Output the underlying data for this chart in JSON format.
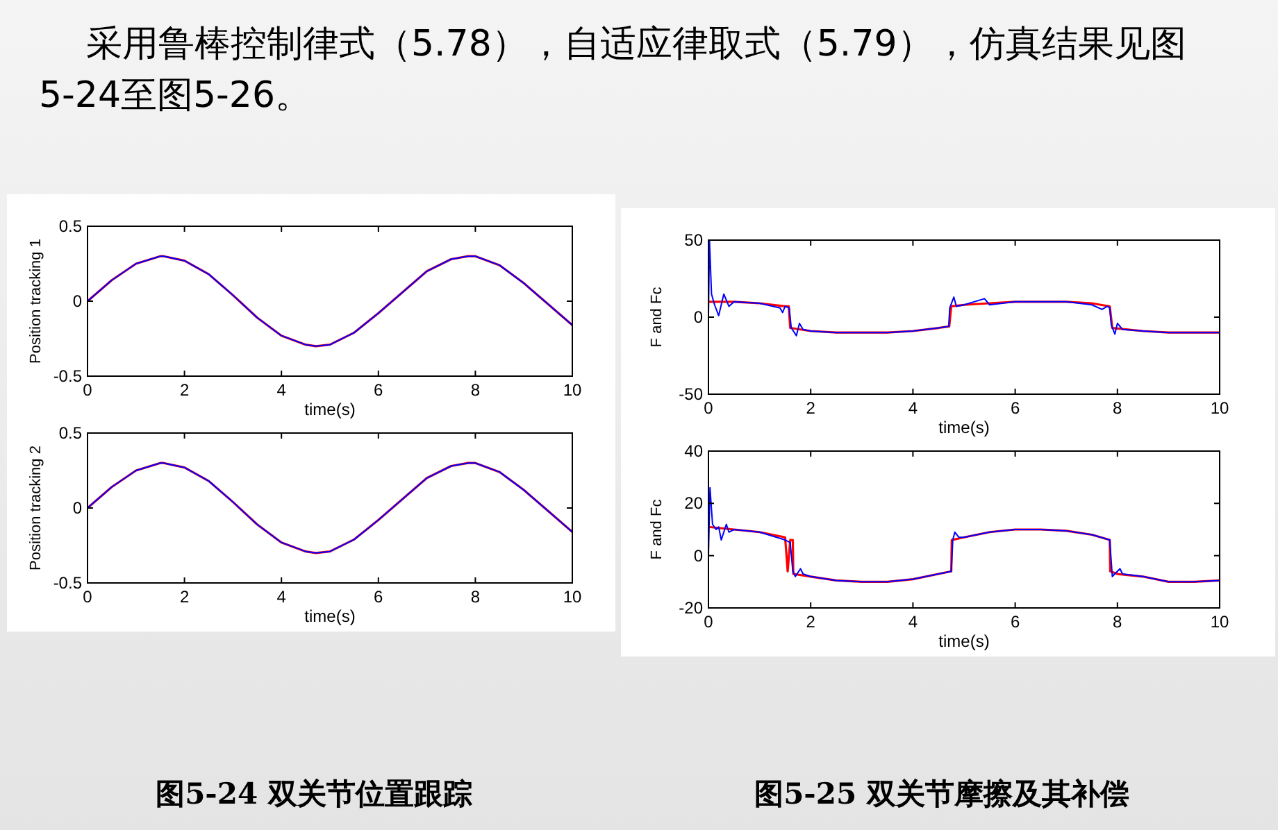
{
  "chart_data": [
    {
      "type": "line",
      "xlabel": "time(s)",
      "ylabel": "Position tracking 1",
      "xlim": [
        0,
        10
      ],
      "ylim": [
        -0.5,
        0.5
      ],
      "xticks": [
        0,
        2,
        4,
        6,
        8,
        10
      ],
      "yticks": [
        -0.5,
        0,
        0.5
      ],
      "annotations": [
        "采用鲁棒控制律式（5.78），自适应律取式（5.79），仿真结果见图5-24至图5-26。"
      ],
      "series": [
        {
          "color": "#ff0000",
          "x": [
            0,
            0.5,
            1,
            1.5,
            1.57,
            2,
            2.5,
            3,
            3.5,
            4,
            4.5,
            4.71,
            5,
            5.5,
            6,
            6.5,
            7,
            7.5,
            7.85,
            8,
            8.5,
            9,
            9.5,
            10
          ],
          "values": [
            0,
            0.14,
            0.25,
            0.3,
            0.3,
            0.27,
            0.18,
            0.04,
            -0.11,
            -0.23,
            -0.29,
            -0.3,
            -0.29,
            -0.21,
            -0.08,
            0.06,
            0.2,
            0.28,
            0.3,
            0.3,
            0.24,
            0.12,
            -0.02,
            -0.16
          ]
        },
        {
          "color": "#0000ff",
          "x": [
            0,
            0.5,
            1,
            1.5,
            1.57,
            2,
            2.5,
            3,
            3.5,
            4,
            4.5,
            4.71,
            5,
            5.5,
            6,
            6.5,
            7,
            7.5,
            7.85,
            8,
            8.5,
            9,
            9.5,
            10
          ],
          "values": [
            0,
            0.14,
            0.25,
            0.3,
            0.3,
            0.27,
            0.18,
            0.04,
            -0.11,
            -0.23,
            -0.29,
            -0.3,
            -0.29,
            -0.21,
            -0.08,
            0.06,
            0.2,
            0.28,
            0.3,
            0.3,
            0.24,
            0.12,
            -0.02,
            -0.16
          ]
        }
      ]
    },
    {
      "type": "line",
      "xlabel": "time(s)",
      "ylabel": "Position tracking 2",
      "xlim": [
        0,
        10
      ],
      "ylim": [
        -0.5,
        0.5
      ],
      "xticks": [
        0,
        2,
        4,
        6,
        8,
        10
      ],
      "yticks": [
        -0.5,
        0,
        0.5
      ],
      "annotations": [
        "图5-24  双关节位置跟踪"
      ],
      "series": [
        {
          "color": "#ff0000",
          "x": [
            0,
            0.5,
            1,
            1.5,
            1.57,
            2,
            2.5,
            3,
            3.5,
            4,
            4.5,
            4.71,
            5,
            5.5,
            6,
            6.5,
            7,
            7.5,
            7.85,
            8,
            8.5,
            9,
            9.5,
            10
          ],
          "values": [
            0,
            0.14,
            0.25,
            0.3,
            0.3,
            0.27,
            0.18,
            0.04,
            -0.11,
            -0.23,
            -0.29,
            -0.3,
            -0.29,
            -0.21,
            -0.08,
            0.06,
            0.2,
            0.28,
            0.3,
            0.3,
            0.24,
            0.12,
            -0.02,
            -0.16
          ]
        },
        {
          "color": "#0000ff",
          "x": [
            0,
            0.5,
            1,
            1.5,
            1.57,
            2,
            2.5,
            3,
            3.5,
            4,
            4.5,
            4.71,
            5,
            5.5,
            6,
            6.5,
            7,
            7.5,
            7.85,
            8,
            8.5,
            9,
            9.5,
            10
          ],
          "values": [
            0,
            0.14,
            0.25,
            0.3,
            0.3,
            0.27,
            0.18,
            0.04,
            -0.11,
            -0.23,
            -0.29,
            -0.3,
            -0.29,
            -0.21,
            -0.08,
            0.06,
            0.2,
            0.28,
            0.3,
            0.3,
            0.24,
            0.12,
            -0.02,
            -0.16
          ]
        }
      ]
    },
    {
      "type": "line",
      "xlabel": "time(s)",
      "ylabel": "F and Fc",
      "xlim": [
        0,
        10
      ],
      "ylim": [
        -50,
        50
      ],
      "xticks": [
        0,
        2,
        4,
        6,
        8,
        10
      ],
      "yticks": [
        -50,
        0,
        50
      ],
      "series": [
        {
          "color": "#ff0000",
          "x": [
            0,
            0.5,
            1,
            1.5,
            1.57,
            1.6,
            2,
            2.5,
            3,
            3.5,
            4,
            4.5,
            4.71,
            4.75,
            5,
            5.5,
            6,
            6.5,
            7,
            7.5,
            7.85,
            7.9,
            8.5,
            9,
            9.5,
            10
          ],
          "values": [
            10,
            10,
            9,
            7,
            7,
            -7,
            -9,
            -10,
            -10,
            -10,
            -9,
            -7,
            -6,
            7,
            8,
            9,
            10,
            10,
            10,
            9,
            7,
            -7,
            -9,
            -10,
            -10,
            -10
          ]
        },
        {
          "color": "#0000ff",
          "x": [
            0,
            0.02,
            0.06,
            0.12,
            0.2,
            0.3,
            0.4,
            0.5,
            1,
            1.4,
            1.45,
            1.5,
            1.58,
            1.62,
            1.72,
            1.78,
            1.85,
            2,
            2.5,
            3,
            3.5,
            4,
            4.5,
            4.7,
            4.72,
            4.8,
            4.85,
            5,
            5.4,
            5.5,
            6,
            7,
            7.5,
            7.7,
            7.8,
            7.85,
            7.88,
            7.95,
            8,
            8.1,
            8.5,
            9,
            10
          ],
          "values": [
            0,
            50,
            15,
            8,
            1,
            15,
            7,
            10,
            9,
            6,
            3,
            7,
            6,
            -7,
            -12,
            -4,
            -8,
            -9,
            -10,
            -10,
            -10,
            -9,
            -7,
            -6,
            6,
            13,
            7,
            8,
            12,
            8,
            10,
            10,
            8,
            5,
            7,
            6,
            -5,
            -11,
            -4,
            -8,
            -9,
            -10,
            -10
          ]
        }
      ]
    },
    {
      "type": "line",
      "xlabel": "time(s)",
      "ylabel": "F and Fc",
      "xlim": [
        0,
        10
      ],
      "ylim": [
        -20,
        40
      ],
      "xticks": [
        0,
        2,
        4,
        6,
        8,
        10
      ],
      "yticks": [
        -20,
        0,
        20,
        40
      ],
      "annotations": [
        "图5-25  双关节摩擦及其补偿"
      ],
      "series": [
        {
          "color": "#ff0000",
          "x": [
            0,
            0.5,
            1,
            1.5,
            1.55,
            1.6,
            1.65,
            1.66,
            2,
            2.5,
            3,
            3.5,
            4,
            4.5,
            4.75,
            4.76,
            5,
            5.5,
            6,
            6.5,
            7,
            7.5,
            7.85,
            7.86,
            8,
            8.5,
            9,
            9.5,
            10
          ],
          "values": [
            11,
            10,
            9,
            7,
            -6,
            6,
            6,
            -7,
            -8,
            -9.5,
            -10,
            -10,
            -9,
            -7,
            -6,
            6,
            7,
            9,
            10,
            10,
            9.5,
            8,
            6,
            -6,
            -7,
            -8,
            -10,
            -10,
            -9.5
          ]
        },
        {
          "color": "#0000ff",
          "x": [
            0,
            0.03,
            0.08,
            0.15,
            0.2,
            0.25,
            0.35,
            0.4,
            0.5,
            1,
            1.5,
            1.6,
            1.65,
            1.7,
            1.8,
            1.85,
            2,
            2.5,
            3,
            3.5,
            4,
            4.5,
            4.75,
            4.78,
            4.82,
            4.9,
            5,
            5.5,
            6,
            6.5,
            7,
            7.5,
            7.85,
            7.9,
            7.95,
            8.05,
            8.1,
            8.5,
            9,
            9.5,
            10
          ],
          "values": [
            0,
            26,
            12,
            10,
            11,
            6,
            12,
            9,
            10,
            9,
            6,
            5,
            -6,
            -8,
            -5,
            -7,
            -8,
            -9.5,
            -10,
            -10,
            -9,
            -7,
            -6,
            6,
            9,
            7,
            7,
            9,
            10,
            10,
            9.5,
            8,
            6,
            -8,
            -7,
            -5,
            -7,
            -8,
            -10,
            -10,
            -9.5
          ]
        }
      ]
    }
  ]
}
